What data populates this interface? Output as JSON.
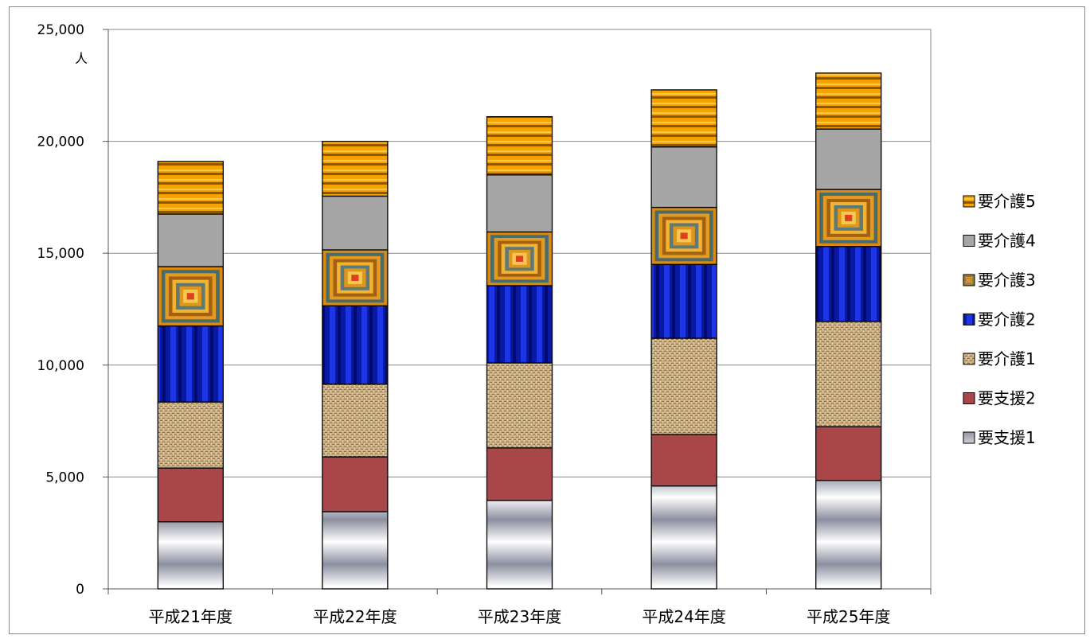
{
  "chart_data": {
    "type": "bar",
    "stacked": true,
    "categories": [
      "平成21年度",
      "平成22年度",
      "平成23年度",
      "平成24年度",
      "平成25年度"
    ],
    "ylim": [
      0,
      25000
    ],
    "yticks": [
      0,
      5000,
      10000,
      15000,
      20000,
      25000
    ],
    "ytick_labels": [
      "0",
      "5,000",
      "10,000",
      "15,000",
      "20,000",
      "25,000"
    ],
    "ylabel": "人",
    "xlabel": "",
    "title": "",
    "grid": true,
    "legend_position": "right",
    "series": [
      {
        "name": "要支援1",
        "pattern": "silver-gradient",
        "color": "#9ea3b3",
        "values": [
          3000,
          3450,
          3950,
          4600,
          4850
        ]
      },
      {
        "name": "要支援2",
        "pattern": "solid",
        "color": "#a8464a",
        "values": [
          2400,
          2450,
          2350,
          2300,
          2400
        ]
      },
      {
        "name": "要介護1",
        "pattern": "burlap",
        "color": "#c9ad7e",
        "values": [
          2950,
          3250,
          3800,
          4300,
          4700
        ]
      },
      {
        "name": "要介護2",
        "pattern": "blue-stripes",
        "color": "#1226c8",
        "values": [
          3400,
          3500,
          3450,
          3300,
          3350
        ]
      },
      {
        "name": "要介護3",
        "pattern": "concentric",
        "color": "#e8a21c",
        "values": [
          2650,
          2500,
          2400,
          2550,
          2550
        ]
      },
      {
        "name": "要介護4",
        "pattern": "solid",
        "color": "#a6a6a6",
        "values": [
          2350,
          2400,
          2550,
          2700,
          2700
        ]
      },
      {
        "name": "要介護5",
        "pattern": "orange-stripes",
        "color": "#f0a000",
        "values": [
          2350,
          2450,
          2600,
          2550,
          2500
        ]
      }
    ]
  }
}
